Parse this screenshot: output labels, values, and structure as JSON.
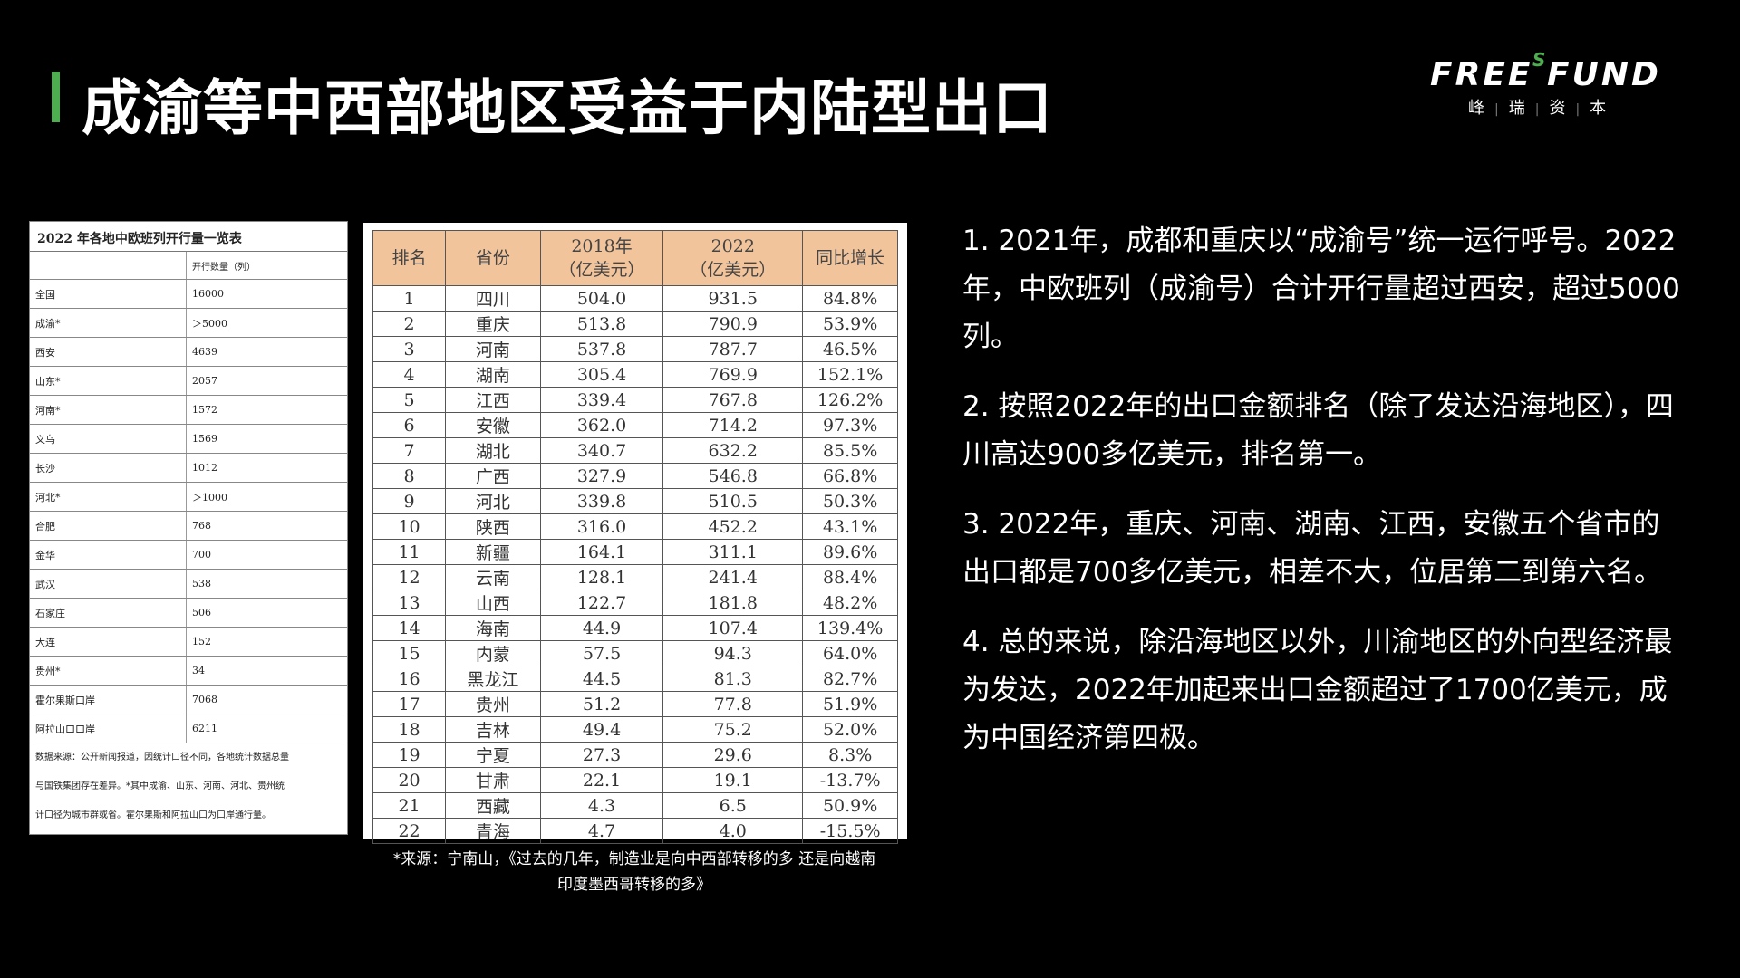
{
  "title": "成渝等中西部地区受益于内陆型出口",
  "logo": {
    "en_main": "FREE FUND",
    "en_accent": "S",
    "cn": [
      "峰",
      "瑞",
      "资",
      "本"
    ]
  },
  "small_table": {
    "title": "2022 年各地中欧班列开行量一览表",
    "header": [
      "",
      "开行数量（列）"
    ],
    "rows": [
      [
        "全国",
        "16000"
      ],
      [
        "成渝*",
        "＞5000"
      ],
      [
        "西安",
        "4639"
      ],
      [
        "山东*",
        "2057"
      ],
      [
        "河南*",
        "1572"
      ],
      [
        "义乌",
        "1569"
      ],
      [
        "长沙",
        "1012"
      ],
      [
        "河北*",
        "＞1000"
      ],
      [
        "合肥",
        "768"
      ],
      [
        "金华",
        "700"
      ],
      [
        "武汉",
        "538"
      ],
      [
        "石家庄",
        "506"
      ],
      [
        "大连",
        "152"
      ],
      [
        "贵州*",
        "34"
      ],
      [
        "霍尔果斯口岸",
        "7068"
      ],
      [
        "阿拉山口口岸",
        "6211"
      ]
    ],
    "note_lines": [
      "数据来源：公开新闻报道，因统计口径不同，各地统计数据总量",
      "与国铁集团存在差异。*其中成渝、山东、河南、河北、贵州统",
      "计口径为城市群或省。霍尔果斯和阿拉山口为口岸通行量。"
    ]
  },
  "rank_table": {
    "headers": [
      "排名",
      "省份",
      "2018年\n（亿美元）",
      "2022\n（亿美元）",
      "同比增长"
    ],
    "rows": [
      [
        "1",
        "四川",
        "504.0",
        "931.5",
        "84.8%"
      ],
      [
        "2",
        "重庆",
        "513.8",
        "790.9",
        "53.9%"
      ],
      [
        "3",
        "河南",
        "537.8",
        "787.7",
        "46.5%"
      ],
      [
        "4",
        "湖南",
        "305.4",
        "769.9",
        "152.1%"
      ],
      [
        "5",
        "江西",
        "339.4",
        "767.8",
        "126.2%"
      ],
      [
        "6",
        "安徽",
        "362.0",
        "714.2",
        "97.3%"
      ],
      [
        "7",
        "湖北",
        "340.7",
        "632.2",
        "85.5%"
      ],
      [
        "8",
        "广西",
        "327.9",
        "546.8",
        "66.8%"
      ],
      [
        "9",
        "河北",
        "339.8",
        "510.5",
        "50.3%"
      ],
      [
        "10",
        "陕西",
        "316.0",
        "452.2",
        "43.1%"
      ],
      [
        "11",
        "新疆",
        "164.1",
        "311.1",
        "89.6%"
      ],
      [
        "12",
        "云南",
        "128.1",
        "241.4",
        "88.4%"
      ],
      [
        "13",
        "山西",
        "122.7",
        "181.8",
        "48.2%"
      ],
      [
        "14",
        "海南",
        "44.9",
        "107.4",
        "139.4%"
      ],
      [
        "15",
        "内蒙",
        "57.5",
        "94.3",
        "64.0%"
      ],
      [
        "16",
        "黑龙江",
        "44.5",
        "81.3",
        "82.7%"
      ],
      [
        "17",
        "贵州",
        "51.2",
        "77.8",
        "51.9%"
      ],
      [
        "18",
        "吉林",
        "49.4",
        "75.2",
        "52.0%"
      ],
      [
        "19",
        "宁夏",
        "27.3",
        "29.6",
        "8.3%"
      ],
      [
        "20",
        "甘肃",
        "22.1",
        "19.1",
        "-13.7%"
      ],
      [
        "21",
        "西藏",
        "4.3",
        "6.5",
        "50.9%"
      ],
      [
        "22",
        "青海",
        "4.7",
        "4.0",
        "-15.5%"
      ]
    ]
  },
  "source_lines": [
    "*来源：宁南山，《过去的几年，制造业是向中西部转移的多  还是向越南",
    "印度墨西哥转移的多》"
  ],
  "points": [
    "1. 2021年，成都和重庆以“成渝号”统一运行呼号。2022年，中欧班列（成渝号）合计开行量超过西安，超过5000列。",
    "2. 按照2022年的出口金额排名（除了发达沿海地区），四川高达900多亿美元，排名第一。",
    "3. 2022年，重庆、河南、湖南、江西，安徽五个省市的出口都是700多亿美元，相差不大，位居第二到第六名。",
    "4. 总的来说，除沿海地区以外，川渝地区的外向型经济最为发达，2022年加起来出口金额超过了1700亿美元，成为中国经济第四极。"
  ],
  "colors": {
    "accent": "#4cae4f",
    "table_header": "#f2c49b",
    "background": "#000000"
  }
}
